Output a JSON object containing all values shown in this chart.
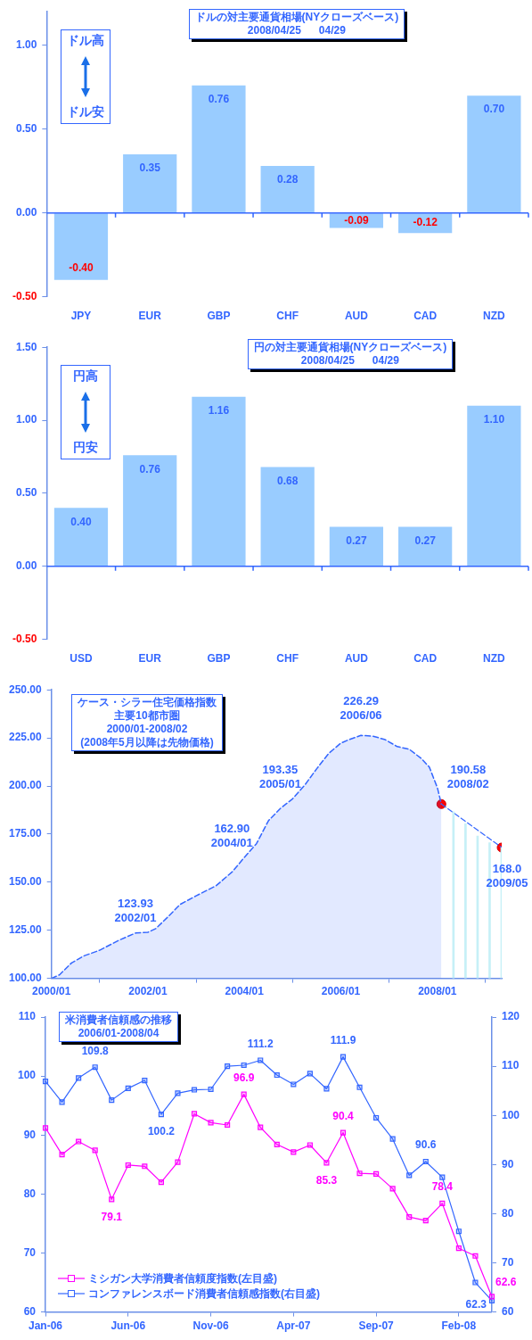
{
  "chart_data": [
    {
      "type": "bar",
      "title": "ドルの対主要通貨相場(NYクローズベース)",
      "subtitle": "2008/04/25      04/29",
      "categories": [
        "JPY",
        "EUR",
        "GBP",
        "CHF",
        "AUD",
        "CAD",
        "NZD"
      ],
      "values": [
        -0.4,
        0.35,
        0.76,
        0.28,
        -0.09,
        -0.12,
        0.7
      ],
      "value_labels": [
        "-0.40",
        "0.35",
        "0.76",
        "0.28",
        "-0.09",
        "-0.12",
        "0.70"
      ],
      "color": "#99ccff",
      "ylim": [
        -0.5,
        1.2
      ],
      "yticks": [
        {
          "value": -0.5,
          "label": "-0.50"
        },
        {
          "value": 0,
          "label": "0.00"
        },
        {
          "value": 0.5,
          "label": "0.50"
        },
        {
          "value": 1,
          "label": "1.00"
        }
      ],
      "annotations": [
        "ドル高",
        "ドル安"
      ],
      "ref_lines": [
        {
          "axis": "y",
          "value": 0
        }
      ],
      "legend": false
    },
    {
      "type": "bar",
      "title": "円の対主要通貨相場(NYクローズベース)",
      "subtitle": "2008/04/25      04/29",
      "categories": [
        "USD",
        "EUR",
        "GBP",
        "CHF",
        "AUD",
        "CAD",
        "NZD"
      ],
      "values": [
        0.4,
        0.76,
        1.16,
        0.68,
        0.27,
        0.27,
        1.1
      ],
      "value_labels": [
        "0.40",
        "0.76",
        "1.16",
        "0.68",
        "0.27",
        "0.27",
        "1.10"
      ],
      "color": "#99ccff",
      "ylim": [
        -0.5,
        1.5
      ],
      "yticks": [
        {
          "value": -0.5,
          "label": "-0.50"
        },
        {
          "value": 0,
          "label": "0.00"
        },
        {
          "value": 0.5,
          "label": "0.50"
        },
        {
          "value": 1,
          "label": "1.00"
        },
        {
          "value": 1.5,
          "label": "1.50"
        }
      ],
      "annotations": [
        "円高",
        "円安"
      ],
      "ref_lines": [
        {
          "axis": "y",
          "value": 0
        }
      ],
      "legend": false
    },
    {
      "type": "area",
      "title": "ケース・シラー住宅価格指数",
      "subtitle": "主要10都市圏\n2000/01-2008/02\n(2008年5月以降は先物価格)",
      "xlim": [
        "2000-01",
        "2009-05"
      ],
      "xticks": [
        {
          "value": "2000-01",
          "label": "2000/01"
        },
        {
          "value": "2002-01",
          "label": "2002/01"
        },
        {
          "value": "2004-01",
          "label": "2004/01"
        },
        {
          "value": "2006-01",
          "label": "2006/01"
        },
        {
          "value": "2008-01",
          "label": "2008/01"
        }
      ],
      "ylim": [
        100,
        250
      ],
      "yticks": [
        {
          "value": 100,
          "label": "100.00"
        },
        {
          "value": 125,
          "label": "125.00"
        },
        {
          "value": 150,
          "label": "150.00"
        },
        {
          "value": 175,
          "label": "175.00"
        },
        {
          "value": 200,
          "label": "200.00"
        },
        {
          "value": 225,
          "label": "225.00"
        },
        {
          "value": 250,
          "label": "250.00"
        }
      ],
      "legend": false,
      "series": [
        {
          "color": "#3366ff",
          "line_style": "dashed",
          "x": [
            "2000-01",
            "2000-03",
            "2000-06",
            "2000-09",
            "2001-01",
            "2001-06",
            "2001-10",
            "2002-01",
            "2002-03",
            "2002-06",
            "2002-09",
            "2003-01",
            "2003-06",
            "2003-10",
            "2004-01",
            "2004-04",
            "2004-07",
            "2004-10",
            "2005-01",
            "2005-04",
            "2005-07",
            "2005-10",
            "2006-01",
            "2006-03",
            "2006-06",
            "2006-09",
            "2006-12",
            "2007-03",
            "2007-06",
            "2007-09",
            "2007-11",
            "2008-01",
            "2008-02"
          ],
          "values": [
            100.0,
            101.8,
            108.0,
            111.6,
            114.6,
            120.0,
            123.6,
            123.93,
            125.9,
            132.0,
            138.4,
            142.9,
            148.2,
            155.4,
            162.9,
            170.0,
            182.0,
            188.4,
            193.35,
            200.4,
            209.0,
            217.0,
            222.3,
            224.1,
            226.29,
            225.9,
            224.1,
            220.5,
            219.1,
            214.3,
            209.8,
            199.1,
            190.58
          ]
        },
        {
          "type": "bar",
          "color": "#c6f0f7",
          "x": [
            "2008-05",
            "2008-08",
            "2008-11",
            "2009-02",
            "2009-05"
          ],
          "values": [
            186.6,
            180.4,
            174.0,
            170.5,
            168.0
          ]
        },
        {
          "type": "line",
          "color": "#3366ff",
          "line_style": "dashed",
          "x": [
            "2008-02",
            "2009-05"
          ],
          "values": [
            190.58,
            168.0
          ]
        },
        {
          "type": "scatter",
          "color": "#ff0000",
          "marker": "circle",
          "x": [
            "2008-02",
            "2009-05"
          ],
          "values": [
            190.58,
            168.0
          ]
        }
      ],
      "annotations": [
        {
          "text": "123.93\n2002/01",
          "x": "2002-01",
          "y": 123.93
        },
        {
          "text": "162.90\n2004/01",
          "x": "2004-01",
          "y": 162.9
        },
        {
          "text": "193.35\n2005/01",
          "x": "2005-01",
          "y": 193.35
        },
        {
          "text": "226.29\n2006/06",
          "x": "2006-06",
          "y": 226.29
        },
        {
          "text": "190.58\n2008/02",
          "x": "2008-02",
          "y": 190.58
        },
        {
          "text": "168.0\n2009/05",
          "x": "2009-05",
          "y": 168.0
        }
      ]
    },
    {
      "type": "line",
      "title": "米消費者信頼感の推移",
      "subtitle": "2006/01-2008/04",
      "categories": [
        "Jan-06",
        null,
        null,
        null,
        null,
        "Jun-06",
        null,
        null,
        null,
        null,
        "Nov-06",
        null,
        null,
        null,
        null,
        "Apr-07",
        null,
        null,
        null,
        null,
        "Sep-07",
        null,
        null,
        null,
        null,
        "Feb-08",
        null,
        null
      ],
      "ylim": [
        60,
        110
      ],
      "yticks": [
        60,
        70,
        80,
        90,
        100,
        110
      ],
      "y2lim": [
        60,
        120
      ],
      "y2ticks": [
        60,
        70,
        80,
        90,
        100,
        110,
        120
      ],
      "marker": "square",
      "legend": "bottom left",
      "series": [
        {
          "name": "ミシガン大学消費者信頼度指数(左目盛)",
          "color": "#ff00ff",
          "values": [
            91.2,
            86.7,
            88.9,
            87.4,
            79.1,
            84.9,
            84.7,
            82.0,
            85.4,
            93.6,
            92.1,
            91.7,
            96.9,
            91.3,
            88.4,
            87.1,
            88.3,
            85.3,
            90.4,
            83.5,
            83.4,
            80.9,
            76.1,
            75.5,
            78.4,
            70.8,
            69.5,
            62.6
          ],
          "value_labels": [
            null,
            null,
            null,
            null,
            "79.1",
            null,
            null,
            null,
            null,
            null,
            null,
            null,
            "96.9",
            null,
            null,
            null,
            null,
            "85.3",
            "90.4",
            null,
            null,
            null,
            null,
            null,
            "78.4",
            null,
            null,
            "62.6"
          ]
        },
        {
          "name": "コンファレンスボード消費者信頼感指数(右目盛)",
          "color": "#3366ff",
          "axis": "y2",
          "values": [
            106.9,
            102.7,
            107.6,
            109.8,
            103.1,
            105.5,
            107.1,
            100.2,
            104.5,
            105.2,
            105.3,
            110.0,
            110.2,
            111.2,
            108.2,
            106.3,
            108.5,
            105.4,
            111.9,
            105.7,
            99.5,
            95.2,
            87.8,
            90.6,
            87.4,
            76.4,
            66.0,
            62.3
          ],
          "value_labels": [
            null,
            null,
            null,
            "109.8",
            null,
            null,
            null,
            "100.2",
            null,
            null,
            null,
            null,
            null,
            "111.2",
            null,
            null,
            null,
            null,
            "111.9",
            null,
            null,
            null,
            null,
            "90.6",
            null,
            null,
            null,
            "62.3"
          ]
        }
      ]
    }
  ]
}
